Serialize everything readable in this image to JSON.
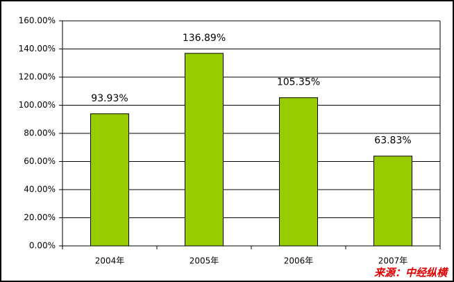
{
  "chart_data": {
    "type": "bar",
    "categories": [
      "2004年",
      "2005年",
      "2006年",
      "2007年"
    ],
    "values": [
      93.93,
      136.89,
      105.35,
      63.83
    ],
    "value_labels": [
      "93.93%",
      "136.89%",
      "105.35%",
      "63.83%"
    ],
    "color": "#99cc00",
    "ylim": [
      0,
      160
    ],
    "yticks": [
      {
        "value": 0,
        "label": "0.00%"
      },
      {
        "value": 20,
        "label": "20.00%"
      },
      {
        "value": 40,
        "label": "40.00%"
      },
      {
        "value": 60,
        "label": "60.00%"
      },
      {
        "value": 80,
        "label": "80.00%"
      },
      {
        "value": 100,
        "label": "100.00%"
      },
      {
        "value": 120,
        "label": "120.00%"
      },
      {
        "value": 140,
        "label": "140.00%"
      },
      {
        "value": 160,
        "label": "160.00%"
      }
    ],
    "grid": true,
    "source": "来源：中经纵横"
  }
}
